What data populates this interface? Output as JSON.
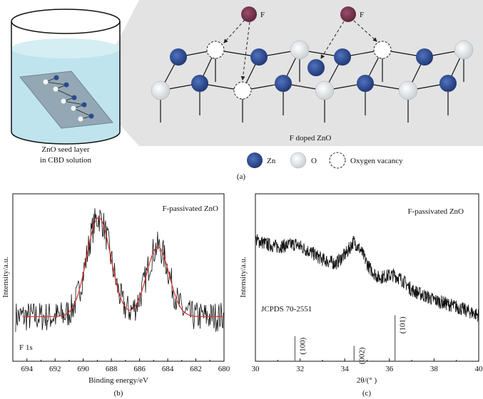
{
  "panel_a": {
    "label": "(a)",
    "beaker_caption_1": "ZnO seed layer",
    "beaker_caption_2": "in CBD solution",
    "lattice_caption": "F doped ZnO",
    "fluorine_label": "F",
    "legend": [
      {
        "label": "Zn",
        "color": "#2e4a8c"
      },
      {
        "label": "O",
        "color": "#e4e8ea"
      },
      {
        "label": "Oxygen vacancy",
        "color": "#ffffff"
      }
    ],
    "colors": {
      "zn": "#2e4a8c",
      "o": "#e4e8ea",
      "f": "#7a3550",
      "panel_bg": "#e3e3e3",
      "water": "#bfe4ee"
    }
  },
  "chart_data": [
    {
      "type": "line",
      "panel_label": "(b)",
      "title": "F-passivated ZnO",
      "annotation": "F 1s",
      "xlabel": "Binding energy/eV",
      "ylabel": "Intensity/a.u.",
      "xlim": [
        695,
        680
      ],
      "xticks": [
        694,
        692,
        690,
        688,
        686,
        684,
        682,
        680
      ],
      "xreversed": true,
      "ylim": [
        0,
        1.2
      ],
      "series": [
        {
          "role": "measured",
          "color": "#111111",
          "noisy": true
        },
        {
          "role": "fit",
          "color": "#e03030",
          "baseline": 0.32,
          "peaks": [
            {
              "center": 688.9,
              "amplitude": 0.71,
              "sigma": 0.85
            },
            {
              "center": 684.7,
              "amplitude": 0.5,
              "sigma": 0.8
            }
          ]
        }
      ]
    },
    {
      "type": "line",
      "panel_label": "(c)",
      "title": "F-passivated ZnO",
      "annotation": "JCPDS 70-2551",
      "xlabel": "2θ/(° )",
      "ylabel": "Intensity/a.u.",
      "xlim": [
        30,
        40
      ],
      "xticks": [
        30,
        32,
        34,
        36,
        38,
        40
      ],
      "ylim": [
        0,
        1.2
      ],
      "series": [
        {
          "role": "measured",
          "color": "#111111",
          "x": [
            30,
            30.5,
            31,
            31.8,
            32.5,
            33,
            33.6,
            34.1,
            34.4,
            34.7,
            35.1,
            35.5,
            36.2,
            36.6,
            37,
            38,
            39,
            40
          ],
          "y": [
            0.87,
            0.84,
            0.82,
            0.84,
            0.78,
            0.73,
            0.7,
            0.78,
            0.86,
            0.8,
            0.67,
            0.6,
            0.62,
            0.58,
            0.51,
            0.44,
            0.39,
            0.33
          ]
        }
      ],
      "reference_lines": [
        {
          "x": 31.77,
          "height": 0.18,
          "label": "(100)"
        },
        {
          "x": 34.42,
          "height": 0.11,
          "label": "(002)"
        },
        {
          "x": 36.25,
          "height": 0.33,
          "label": "(101)"
        }
      ]
    }
  ]
}
